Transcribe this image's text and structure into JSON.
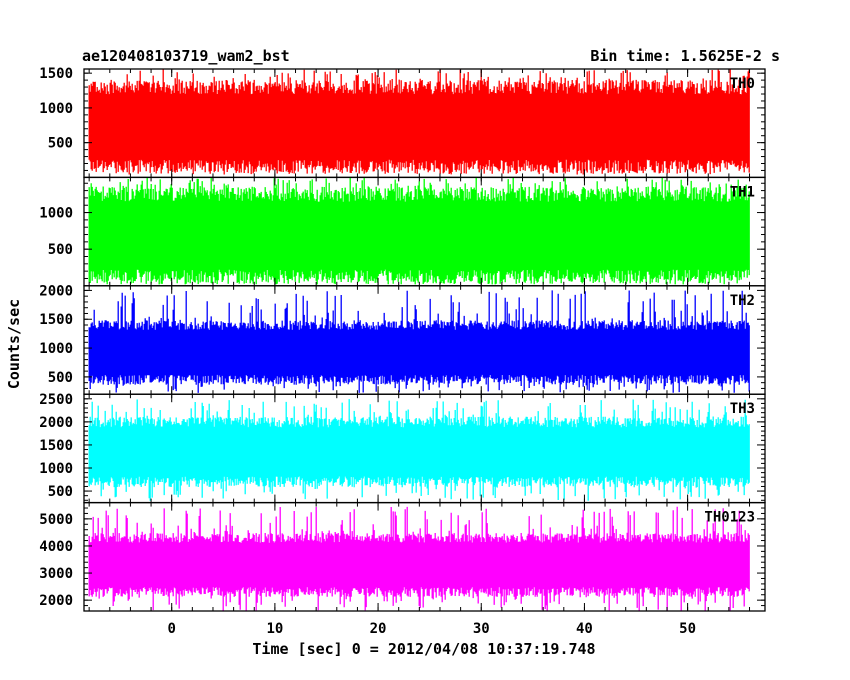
{
  "chart_data": {
    "type": "line",
    "title_left": "ae120408103719_wam2_bst",
    "title_right": "Bin time: 1.5625E-2 s",
    "xlabel": "Time [sec] 0 = 2012/04/08 10:37:19.748",
    "ylabel": "Counts/sec",
    "xlim": [
      -8.5,
      57.5
    ],
    "x_range_data": [
      -8,
      56
    ],
    "x_ticks": [
      0,
      10,
      20,
      30,
      40,
      50
    ],
    "grid": false,
    "panels": [
      {
        "name": "TH0",
        "color": "#ff0000",
        "ylim": [
          0,
          1560
        ],
        "y_ticks": [
          500,
          1000,
          1500
        ],
        "typical_low": 150,
        "typical_high": 1300,
        "min": 40,
        "max": 1560
      },
      {
        "name": "TH1",
        "color": "#00ff00",
        "ylim": [
          0,
          1480
        ],
        "y_ticks": [
          500,
          1000
        ],
        "typical_low": 120,
        "typical_high": 1250,
        "min": 20,
        "max": 1480
      },
      {
        "name": "TH2",
        "color": "#0000ff",
        "ylim": [
          200,
          2080
        ],
        "y_ticks": [
          500,
          1000,
          1500,
          2000
        ],
        "typical_low": 450,
        "typical_high": 1400,
        "min": 220,
        "max": 2000
      },
      {
        "name": "TH3",
        "color": "#00ffff",
        "ylim": [
          250,
          2600
        ],
        "y_ticks": [
          500,
          1000,
          1500,
          2000,
          2500
        ],
        "typical_low": 700,
        "typical_high": 2000,
        "min": 280,
        "max": 2500
      },
      {
        "name": "TH0123",
        "color": "#ff00ff",
        "ylim": [
          1600,
          5600
        ],
        "y_ticks": [
          2000,
          3000,
          4000,
          5000
        ],
        "typical_low": 2300,
        "typical_high": 4300,
        "min": 1600,
        "max": 5450
      }
    ]
  }
}
